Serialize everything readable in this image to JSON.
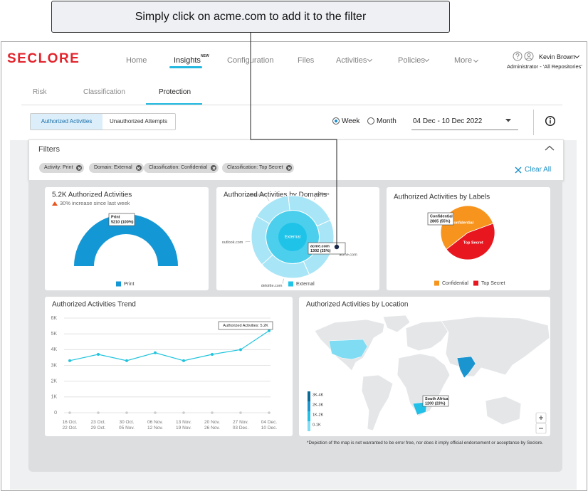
{
  "callout": "Simply click on acme.com to add it to the filter",
  "header": {
    "logo": "SECLORE",
    "nav": [
      "Home",
      "Insights",
      "Configuration",
      "Files",
      "Activities",
      "Policies",
      "More"
    ],
    "nav_badge": "NEW",
    "user": {
      "name": "Kevin Brown",
      "role": "Administrator - 'All Repositories'"
    }
  },
  "tabs": [
    "Risk",
    "Classification",
    "Protection"
  ],
  "toggles": [
    "Authorized Activities",
    "Unauthorized Attempts"
  ],
  "period": [
    "Week",
    "Month"
  ],
  "date_range": "04 Dec - 10 Dec 2022",
  "filters": {
    "title": "Filters",
    "chips": [
      "Activity: Print",
      "Domain: External",
      "Classification: Confidential",
      "Classification: Top Secret"
    ],
    "clear": "Clear All"
  },
  "chart_data": [
    {
      "type": "donut",
      "title": "5.2K Authorized Activities",
      "subtitle": "30% increase since last week",
      "categories": [
        "Print"
      ],
      "values": [
        5210
      ],
      "value_labels": [
        "5210 (100%)"
      ],
      "colors": [
        "#1497d5"
      ]
    },
    {
      "type": "sunburst",
      "title": "Authorized Activities by Domains",
      "inner": {
        "name": "External",
        "value": 5210,
        "color": "#1fc3e8"
      },
      "categories": [
        "gmail.com",
        "Others",
        "acme.com",
        "deloitte.com",
        "outlook.com"
      ],
      "values": [
        782,
        1042,
        1302,
        1042,
        1042
      ],
      "value_labels": [
        null,
        null,
        "1302 (25%)",
        null,
        null
      ],
      "color": "#a8e5f6"
    },
    {
      "type": "pie",
      "title": "Authorized Activities by Labels",
      "categories": [
        "Confidential",
        "Top Secret"
      ],
      "values": [
        2865,
        2345
      ],
      "value_labels": [
        "2865 (55%)",
        null
      ],
      "colors": [
        "#f7941d",
        "#e8171f"
      ]
    },
    {
      "type": "line",
      "title": "Authorized Activities Trend",
      "categories": [
        "16 Oct.\n22 Oct.",
        "23 Oct.\n29 Oct.",
        "30 Oct.\n05 Nov.",
        "06 Nov.\n12 Nov.",
        "13 Nov.\n19 Nov.",
        "20 Nov.\n26 Nov.",
        "27 Nov.\n03 Dec.",
        "04 Dec.\n10 Dec."
      ],
      "values": [
        3300,
        3700,
        3300,
        3800,
        3300,
        3700,
        4000,
        5200
      ],
      "value_labels": [
        null,
        null,
        null,
        null,
        null,
        null,
        null,
        "Authorized Activities: 5.2K"
      ],
      "color": "#21c4dc",
      "ylim": [
        0,
        6000
      ],
      "yticks": [
        0,
        {
          "value": 1000,
          "label": "1K"
        },
        {
          "value": 2000,
          "label": "2K"
        },
        {
          "value": 3000,
          "label": "3K"
        },
        {
          "value": 4000,
          "label": "4K"
        },
        {
          "value": 5000,
          "label": "5K"
        },
        {
          "value": 6000,
          "label": "6K"
        }
      ],
      "grid": true
    },
    {
      "type": "map",
      "title": "Authorized Activities by Location",
      "categories": [
        null,
        null,
        "South Africa"
      ],
      "values": [
        900,
        2400,
        1200
      ],
      "value_labels": [
        null,
        null,
        "1200 (23%)"
      ],
      "colors": [
        "#7fdcf3",
        "#1b95cf",
        "#22bfe6"
      ],
      "legend": [
        "3K-4K",
        "2K-3K",
        "1K-2K",
        "0-1K"
      ],
      "legend_colors": [
        "#0a6a96",
        "#1b95cf",
        "#22bfe6",
        "#7fdcf3"
      ],
      "footnote": "*Depiction of the map is not warranted to be error free, nor does it imply official endorsement or acceptance by Seclore."
    }
  ]
}
